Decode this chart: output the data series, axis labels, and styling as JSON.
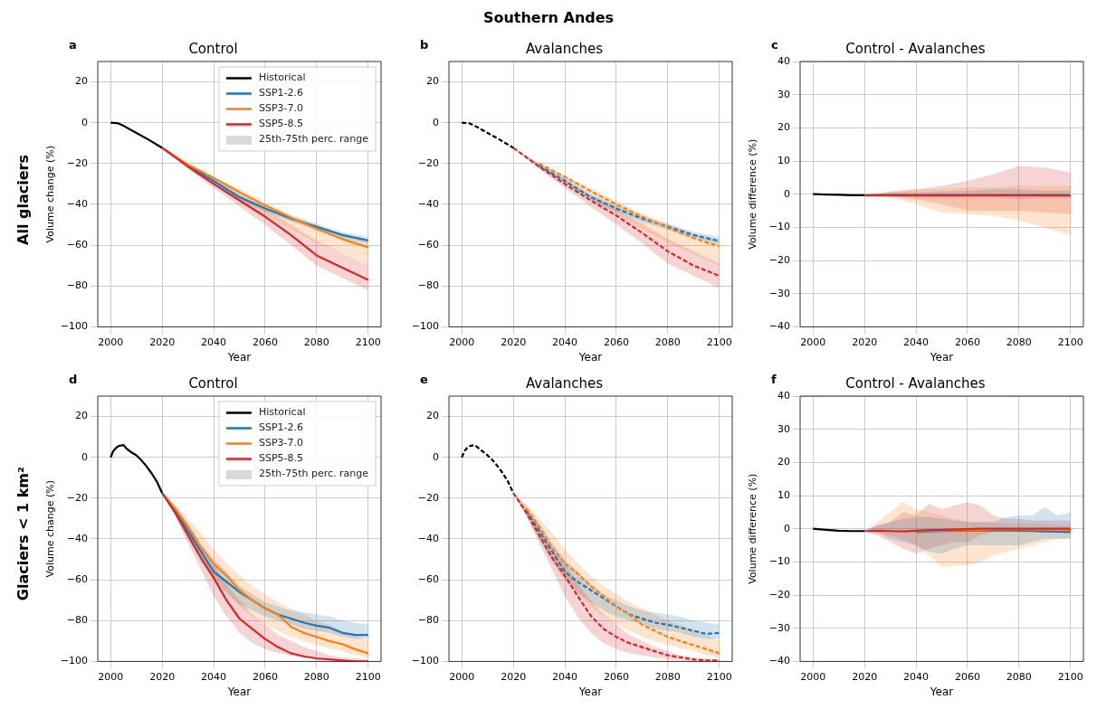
{
  "chart_data": [
    {
      "type": "line",
      "title": "Control",
      "xlabel": "Year",
      "ylabel": "Volume change (%)",
      "annotations": [
        "a",
        "25th-75th perc. range",
        "All glaciers",
        "Southern Andes"
      ],
      "xlim": [
        1995,
        2105
      ],
      "xticks": [
        2000,
        2020,
        2040,
        2060,
        2080,
        2100
      ],
      "ylim": [
        -100,
        30
      ],
      "yticks": [
        -100,
        -80,
        -60,
        -40,
        -20,
        0,
        20
      ],
      "grid": true,
      "legend": "top right",
      "series": [
        {
          "name": "Historical",
          "color": "#000000",
          "x": [
            2000,
            2003,
            2005,
            2010,
            2015,
            2020
          ],
          "values": [
            0,
            -0.3,
            -1.5,
            -5,
            -8.5,
            -12.3
          ]
        },
        {
          "name": "SSP1-2.6",
          "color": "#1f77b4",
          "x": [
            2020,
            2030,
            2040,
            2050,
            2060,
            2070,
            2080,
            2090,
            2100
          ],
          "values": [
            -12.3,
            -21,
            -28.5,
            -36.5,
            -42,
            -47,
            -51,
            -55,
            -57.7
          ],
          "lower": [
            -12.3,
            -22,
            -30,
            -38,
            -43.5,
            -48.5,
            -52.5,
            -56.5,
            -59.5
          ],
          "upper": [
            -12.3,
            -20,
            -27,
            -35,
            -40.5,
            -45.5,
            -49.5,
            -53.5,
            -56
          ]
        },
        {
          "name": "SSP3-7.0",
          "color": "#ff7f0e",
          "x": [
            2020,
            2030,
            2040,
            2050,
            2060,
            2070,
            2080,
            2090,
            2100
          ],
          "values": [
            -12.3,
            -20.5,
            -27,
            -34,
            -40.5,
            -46.5,
            -52,
            -57,
            -61
          ],
          "lower": [
            -12.3,
            -21,
            -29,
            -37,
            -45,
            -52,
            -59,
            -64,
            -70
          ],
          "upper": [
            -12.3,
            -20,
            -26.5,
            -32.5,
            -39,
            -45,
            -50,
            -55,
            -58
          ]
        },
        {
          "name": "SSP5-8.5",
          "color": "#d62728",
          "x": [
            2020,
            2030,
            2040,
            2050,
            2060,
            2070,
            2080,
            2090,
            2100
          ],
          "values": [
            -12.3,
            -21.5,
            -30,
            -38,
            -46,
            -55,
            -65,
            -71,
            -77
          ],
          "lower": [
            -12.3,
            -22.5,
            -32,
            -41,
            -50,
            -60,
            -70,
            -76,
            -82
          ],
          "upper": [
            -12.3,
            -20.5,
            -28.5,
            -35.5,
            -42.5,
            -50,
            -58,
            -64,
            -70
          ]
        }
      ]
    },
    {
      "type": "line",
      "title": "Avalanches",
      "xlabel": "Year",
      "annotations": [
        "b"
      ],
      "xlim": [
        1995,
        2105
      ],
      "xticks": [
        2000,
        2020,
        2040,
        2060,
        2080,
        2100
      ],
      "ylim": [
        -100,
        30
      ],
      "yticks": [
        -100,
        -80,
        -60,
        -40,
        -20,
        0,
        20
      ],
      "grid": true,
      "line_style": "dashed",
      "series": [
        {
          "color": "#000000",
          "x": [
            2000,
            2003,
            2005,
            2010,
            2015,
            2020
          ],
          "values": [
            0,
            -0.3,
            -1.5,
            -5,
            -8.5,
            -12.3
          ]
        },
        {
          "color": "#1f77b4",
          "x": [
            2020,
            2030,
            2040,
            2050,
            2060,
            2070,
            2080,
            2090,
            2100
          ],
          "values": [
            null,
            -21,
            -28.5,
            -36.5,
            -42,
            -47,
            -51,
            -55,
            -58
          ],
          "lower": [
            -12.3,
            -22,
            -30,
            -38,
            -43.5,
            -48.5,
            -52.5,
            -56.5,
            -59.5
          ],
          "upper": [
            -12.3,
            -20,
            -27,
            -35,
            -40.5,
            -45.5,
            -49.5,
            -53.5,
            -56
          ]
        },
        {
          "color": "#ff7f0e",
          "x": [
            2020,
            2030,
            2040,
            2050,
            2060,
            2070,
            2080,
            2090,
            2100
          ],
          "values": [
            null,
            -20,
            -26.5,
            -33.5,
            -40,
            -46,
            -51.5,
            -56.5,
            -60.5
          ],
          "lower": [
            -12.3,
            -21,
            -29,
            -37,
            -45,
            -52,
            -59,
            -64,
            -70
          ],
          "upper": [
            -12.3,
            -20,
            -26,
            -32,
            -38.5,
            -44.5,
            -49.5,
            -54.5,
            -57.5
          ]
        },
        {
          "color": "#d62728",
          "x": [
            2020,
            2030,
            2040,
            2050,
            2060,
            2070,
            2080,
            2090,
            2100
          ],
          "values": [
            -12.3,
            -21.5,
            -30,
            -38,
            -45.5,
            -54,
            -63,
            -70,
            -75
          ],
          "lower": [
            -12.3,
            -22.5,
            -32,
            -41,
            -50,
            -59,
            -69,
            -75,
            -81
          ],
          "upper": [
            -12.3,
            -20.5,
            -28.5,
            -35.5,
            -42.5,
            -49.5,
            -57,
            -63,
            -69
          ]
        }
      ]
    },
    {
      "type": "line",
      "title": "Control - Avalanches",
      "xlabel": "Year",
      "ylabel": "Volume difference (%)",
      "annotations": [
        "c"
      ],
      "xlim": [
        1995,
        2105
      ],
      "xticks": [
        2000,
        2020,
        2040,
        2060,
        2080,
        2100
      ],
      "ylim": [
        -40,
        40
      ],
      "yticks": [
        -40,
        -30,
        -20,
        -10,
        0,
        10,
        20,
        30,
        40
      ],
      "grid": true,
      "series": [
        {
          "color": "#000000",
          "x": [
            2000,
            2005,
            2010,
            2015,
            2020
          ],
          "values": [
            0,
            -0.1,
            -0.2,
            -0.3,
            -0.3
          ]
        },
        {
          "color": "#1f77b4",
          "x": [
            2020,
            2030,
            2040,
            2050,
            2060,
            2070,
            2080,
            2090,
            2100
          ],
          "values": [
            null,
            null,
            null,
            null,
            null,
            null,
            null,
            null,
            null
          ],
          "lower": [
            -0.3,
            -0.8,
            -1,
            -1,
            -1,
            -1,
            -1.5,
            -1.2,
            -1
          ],
          "upper": [
            -0.3,
            0.5,
            0.5,
            0.8,
            1,
            1.5,
            1.5,
            1,
            1
          ]
        },
        {
          "color": "#ff7f0e",
          "x": [
            2020,
            2030,
            2040,
            2050,
            2060,
            2070,
            2080,
            2090,
            2100
          ],
          "values": [
            null,
            null,
            null,
            null,
            null,
            null,
            null,
            null,
            null
          ],
          "lower": [
            -0.3,
            -1,
            -3,
            -5.5,
            -6,
            -6.5,
            -8,
            -10,
            -12.5
          ],
          "upper": [
            -0.3,
            1,
            1.5,
            1.5,
            2,
            2,
            2.5,
            2.5,
            2.5
          ]
        },
        {
          "color": "#d62728",
          "x": [
            2020,
            2030,
            2040,
            2050,
            2060,
            2070,
            2080,
            2090,
            2100
          ],
          "values": [
            -0.3,
            -0.3,
            -0.3,
            -0.3,
            -0.3,
            -0.3,
            -0.3,
            -0.3,
            -0.4
          ],
          "lower": [
            -0.3,
            -0.5,
            -1.5,
            -3,
            -5,
            -5,
            -5,
            -5.5,
            -6
          ],
          "upper": [
            -0.3,
            0.5,
            1.5,
            2.5,
            4,
            6,
            8.5,
            8,
            6.5
          ]
        }
      ]
    },
    {
      "type": "line",
      "title": "Control",
      "xlabel": "Year",
      "ylabel": "Volume change (%)",
      "annotations": [
        "d",
        "25th-75th perc. range",
        "Glaciers < 1 km²"
      ],
      "xlim": [
        1995,
        2105
      ],
      "xticks": [
        2000,
        2020,
        2040,
        2060,
        2080,
        2100
      ],
      "ylim": [
        -100,
        30
      ],
      "yticks": [
        -100,
        -80,
        -60,
        -40,
        -20,
        0,
        20
      ],
      "grid": true,
      "legend": "top right",
      "series": [
        {
          "name": "Historical",
          "color": "#000000",
          "x": [
            2000,
            2001,
            2002,
            2003,
            2004,
            2005,
            2006,
            2007,
            2008,
            2010,
            2012,
            2014,
            2016,
            2018,
            2020
          ],
          "values": [
            0,
            3,
            4.5,
            5.5,
            5.8,
            6,
            4.5,
            3.5,
            2.5,
            1,
            -1.5,
            -4.5,
            -8,
            -12,
            -17.5
          ]
        },
        {
          "name": "SSP1-2.6",
          "color": "#1f77b4",
          "x": [
            2020,
            2025,
            2030,
            2035,
            2040,
            2045,
            2050,
            2055,
            2060,
            2065,
            2070,
            2075,
            2080,
            2085,
            2090,
            2095,
            2100
          ],
          "values": [
            -17.5,
            -26,
            -36,
            -46,
            -56,
            -61,
            -66,
            -70,
            -74,
            -77,
            -79,
            -81,
            -82.5,
            -83.5,
            -86,
            -87,
            -87
          ],
          "lower": [
            -17.5,
            -28,
            -40,
            -51,
            -60,
            -66,
            -72,
            -75,
            -78,
            -80,
            -82,
            -84,
            -85,
            -86,
            -88,
            -89,
            -89
          ],
          "upper": [
            -17.5,
            -24,
            -32,
            -42,
            -50,
            -56,
            -63,
            -67,
            -71,
            -73,
            -75,
            -76,
            -77,
            -78,
            -80,
            -81,
            -82
          ]
        },
        {
          "name": "SSP3-7.0",
          "color": "#ff7f0e",
          "x": [
            2020,
            2025,
            2030,
            2035,
            2040,
            2045,
            2050,
            2055,
            2060,
            2065,
            2070,
            2075,
            2080,
            2085,
            2090,
            2095,
            2100
          ],
          "values": [
            -17.5,
            -25,
            -34,
            -44,
            -52,
            -58,
            -65,
            -70,
            -74,
            -77,
            -83,
            -86,
            -88,
            -90,
            -91.5,
            -94,
            -96
          ],
          "lower": [
            -17.5,
            -28,
            -40,
            -51,
            -60,
            -67,
            -73,
            -78,
            -82,
            -85,
            -88,
            -90,
            -92,
            -93.5,
            -95,
            -97,
            -98
          ],
          "upper": [
            -17.5,
            -23,
            -30,
            -37,
            -45,
            -52,
            -58,
            -63,
            -67,
            -71,
            -74,
            -77,
            -80,
            -82,
            -85,
            -87,
            -90
          ]
        },
        {
          "name": "SSP5-8.5",
          "color": "#d62728",
          "x": [
            2020,
            2025,
            2030,
            2035,
            2040,
            2045,
            2050,
            2055,
            2060,
            2065,
            2070,
            2075,
            2080,
            2085,
            2090,
            2095,
            2100
          ],
          "values": [
            -17.5,
            -27,
            -38,
            -49,
            -59,
            -70,
            -79,
            -84,
            -89,
            -93,
            -96,
            -97.5,
            -98.5,
            -99,
            -99.5,
            -100,
            -100
          ],
          "lower": [
            -17.5,
            -29,
            -42,
            -55,
            -68,
            -78,
            -86,
            -91,
            -94,
            -96,
            -97,
            -98,
            -99,
            -99.5,
            -100,
            -100,
            -100
          ],
          "upper": [
            -17.5,
            -25,
            -34,
            -44,
            -52,
            -62,
            -70,
            -77,
            -82,
            -87,
            -90,
            -93,
            -95,
            -97,
            -98,
            -98.5,
            -99
          ]
        }
      ]
    },
    {
      "type": "line",
      "title": "Avalanches",
      "xlabel": "Year",
      "annotations": [
        "e"
      ],
      "xlim": [
        1995,
        2105
      ],
      "xticks": [
        2000,
        2020,
        2040,
        2060,
        2080,
        2100
      ],
      "ylim": [
        -100,
        30
      ],
      "yticks": [
        -100,
        -80,
        -60,
        -40,
        -20,
        0,
        20
      ],
      "grid": true,
      "line_style": "dashed",
      "series": [
        {
          "color": "#000000",
          "x": [
            2000,
            2001,
            2002,
            2003,
            2004,
            2005,
            2006,
            2007,
            2008,
            2010,
            2012,
            2014,
            2016,
            2018,
            2020
          ],
          "values": [
            0,
            3,
            4.5,
            5.5,
            5.8,
            6,
            5,
            4,
            3,
            1,
            -1.5,
            -4.5,
            -8,
            -12,
            -17.5
          ]
        },
        {
          "color": "#1f77b4",
          "x": [
            2020,
            2025,
            2030,
            2035,
            2040,
            2045,
            2050,
            2055,
            2060,
            2065,
            2070,
            2075,
            2080,
            2085,
            2090,
            2095,
            2100
          ],
          "values": [
            null,
            -26,
            -36,
            -46,
            -56,
            -61,
            -65,
            -69,
            -73,
            -77,
            -79,
            -81,
            -82,
            -83.5,
            -85,
            -86.5,
            -86
          ],
          "lower": [
            -17.5,
            -28,
            -40,
            -51,
            -60,
            -66,
            -71,
            -75,
            -78,
            -80,
            -82,
            -84,
            -85,
            -86,
            -88,
            -89,
            -89
          ],
          "upper": [
            -17.5,
            -24,
            -32,
            -42,
            -50,
            -56,
            -62,
            -67,
            -70,
            -73,
            -75,
            -76,
            -77,
            -78,
            -80,
            -81,
            -82
          ]
        },
        {
          "color": "#ff7f0e",
          "x": [
            2020,
            2025,
            2030,
            2035,
            2040,
            2045,
            2050,
            2055,
            2060,
            2065,
            2070,
            2075,
            2080,
            2085,
            2090,
            2095,
            2100
          ],
          "values": [
            null,
            -25,
            -34,
            -44,
            -52,
            -57,
            -63,
            -68,
            -73,
            -77,
            -82,
            -85,
            -88,
            -90,
            -92,
            -94,
            -96
          ],
          "lower": [
            -17.5,
            -28,
            -40,
            -51,
            -60,
            -67,
            -73,
            -78,
            -82,
            -85,
            -88,
            -90,
            -92,
            -93.5,
            -95,
            -97,
            -98
          ],
          "upper": [
            -17.5,
            -23,
            -30,
            -37,
            -45,
            -52,
            -58,
            -63,
            -67,
            -71,
            -74,
            -77,
            -80,
            -82,
            -85,
            -87,
            -90
          ]
        },
        {
          "color": "#d62728",
          "x": [
            2020,
            2025,
            2030,
            2035,
            2040,
            2045,
            2050,
            2055,
            2060,
            2065,
            2070,
            2075,
            2080,
            2085,
            2090,
            2095,
            2100
          ],
          "values": [
            -17.5,
            -27,
            -38,
            -49,
            -58,
            -68,
            -77.5,
            -84,
            -88,
            -91,
            -93,
            -95,
            -97,
            -98,
            -99,
            -99.5,
            -99.5
          ],
          "lower": [
            -17.5,
            -29,
            -42,
            -55,
            -68,
            -78,
            -86,
            -91,
            -94,
            -96,
            -97,
            -98,
            -99,
            -99.5,
            -100,
            -100,
            -100
          ],
          "upper": [
            -17.5,
            -25,
            -34,
            -44,
            -52,
            -62,
            -70,
            -77,
            -82,
            -87,
            -90,
            -93,
            -95,
            -97,
            -98,
            -98.5,
            -99
          ]
        }
      ]
    },
    {
      "type": "line",
      "title": "Control - Avalanches",
      "xlabel": "Year",
      "ylabel": "Volume difference (%)",
      "annotations": [
        "f"
      ],
      "xlim": [
        1995,
        2105
      ],
      "xticks": [
        2000,
        2020,
        2040,
        2060,
        2080,
        2100
      ],
      "ylim": [
        -40,
        40
      ],
      "yticks": [
        -40,
        -30,
        -20,
        -10,
        0,
        10,
        20,
        30,
        40
      ],
      "grid": true,
      "series": [
        {
          "color": "#000000",
          "x": [
            2000,
            2005,
            2010,
            2015,
            2020
          ],
          "values": [
            0,
            -0.3,
            -0.6,
            -0.7,
            -0.7
          ]
        },
        {
          "color": "#1f77b4",
          "x": [
            2020,
            2025,
            2030,
            2035,
            2040,
            2045,
            2050,
            2055,
            2060,
            2065,
            2070,
            2075,
            2080,
            2085,
            2090,
            2095,
            2100
          ],
          "values": [
            null,
            null,
            null,
            null,
            -1,
            -0.8,
            -0.7,
            -0.6,
            -0.5,
            -0.5,
            -0.5,
            -0.5,
            -0.6,
            -0.7,
            -0.8,
            -0.9,
            -1
          ],
          "lower": [
            -0.7,
            -1,
            -3,
            -4,
            -5,
            -7,
            -7.5,
            -6,
            -5,
            -5,
            -5,
            -5,
            -5,
            -4,
            -3,
            -3,
            -3
          ],
          "upper": [
            -0.7,
            1,
            2,
            3,
            3.5,
            3.5,
            3,
            2.5,
            2,
            2,
            2,
            3.5,
            4,
            4,
            6.5,
            4,
            5
          ]
        },
        {
          "color": "#ff7f0e",
          "x": [
            2020,
            2025,
            2030,
            2035,
            2040,
            2045,
            2050,
            2055,
            2060,
            2065,
            2070,
            2075,
            2080,
            2085,
            2090,
            2095,
            2100
          ],
          "values": [
            null,
            null,
            null,
            null,
            -0.8,
            -0.6,
            -0.5,
            -0.4,
            -0.3,
            -0.3,
            -0.2,
            -0.2,
            -0.2,
            -0.2,
            -0.2,
            -0.2,
            -0.3
          ],
          "lower": [
            -0.7,
            -1,
            -2,
            -3,
            -5,
            -8,
            -11.5,
            -11,
            -11,
            -10,
            -8,
            -7,
            -6,
            -5,
            -4,
            -3,
            -3
          ],
          "upper": [
            -0.7,
            2,
            5,
            8,
            6,
            5,
            4,
            3,
            2,
            2,
            2,
            1.5,
            1.5,
            1.5,
            1.5,
            1,
            1
          ]
        },
        {
          "color": "#d62728",
          "x": [
            2020,
            2025,
            2030,
            2035,
            2040,
            2045,
            2050,
            2055,
            2060,
            2065,
            2070,
            2075,
            2080,
            2085,
            2090,
            2095,
            2100
          ],
          "values": [
            -0.7,
            -0.6,
            -0.7,
            -0.8,
            -0.6,
            -0.4,
            -0.3,
            -0.2,
            -0.1,
            0,
            0,
            0,
            0,
            0,
            0,
            0,
            0
          ],
          "lower": [
            -0.7,
            -2,
            -4,
            -6,
            -7.5,
            -6,
            -5,
            -4,
            -4,
            -2,
            -1,
            -1,
            -0.5,
            -0.5,
            -0.5,
            -0.5,
            -0.5
          ],
          "upper": [
            -0.7,
            1,
            2,
            5,
            4,
            7.5,
            6,
            7,
            8,
            7,
            4,
            3,
            3,
            2.5,
            2.5,
            2.5,
            2.5
          ]
        }
      ]
    }
  ]
}
